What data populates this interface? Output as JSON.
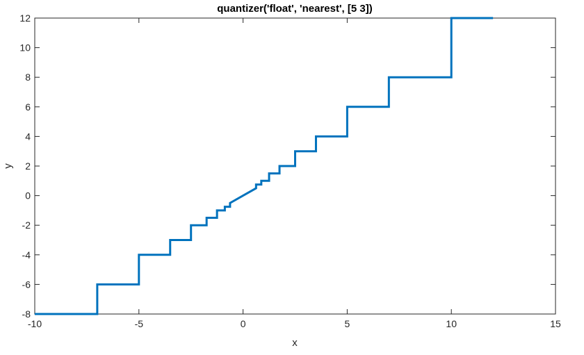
{
  "chart_data": {
    "type": "line",
    "title": "quantizer('float', 'nearest', [5  3])",
    "xlabel": "x",
    "ylabel": "y",
    "xlim": [
      -10,
      15
    ],
    "ylim": [
      -8,
      12
    ],
    "xticks": [
      "-10",
      "-5",
      "0",
      "5",
      "10",
      "15"
    ],
    "yticks": [
      "-8",
      "-6",
      "-4",
      "-2",
      "0",
      "2",
      "4",
      "6",
      "8",
      "10",
      "12"
    ],
    "grid": false,
    "line_color": "#0072BD",
    "series": [
      {
        "x": [
          -10,
          -7,
          -7,
          -5,
          -5,
          -3.5,
          -3.5,
          -2.5,
          -2.5,
          -1.75,
          -1.75,
          -1.25,
          -1.25,
          -0.875,
          -0.875,
          -0.625,
          -0.625,
          0,
          0.625,
          0.625,
          0.875,
          0.875,
          1.25,
          1.25,
          1.75,
          1.75,
          2.5,
          2.5,
          3.5,
          3.5,
          5,
          5,
          7,
          7,
          10,
          10,
          12
        ],
        "y": [
          -8,
          -8,
          -6,
          -6,
          -4,
          -4,
          -3,
          -3,
          -2,
          -2,
          -1.5,
          -1.5,
          -1,
          -1,
          -0.75,
          -0.75,
          -0.5,
          0,
          0.5,
          0.75,
          0.75,
          1,
          1,
          1.5,
          1.5,
          2,
          2,
          3,
          3,
          4,
          4,
          6,
          6,
          8,
          8,
          12,
          12
        ]
      }
    ]
  }
}
